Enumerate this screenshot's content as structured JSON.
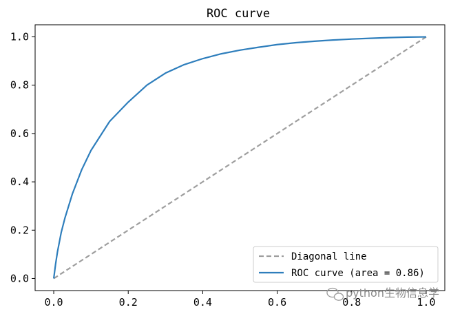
{
  "chart_data": {
    "type": "line",
    "title": "ROC curve",
    "xlabel": "",
    "ylabel": "",
    "xlim": [
      -0.05,
      1.05
    ],
    "ylim": [
      -0.05,
      1.05
    ],
    "xticks": [
      0.0,
      0.2,
      0.4,
      0.6,
      0.8,
      1.0
    ],
    "xtick_labels": [
      "0.0",
      "0.2",
      "0.4",
      "0.6",
      "0.8",
      "1.0"
    ],
    "yticks": [
      0.0,
      0.2,
      0.4,
      0.6,
      0.8,
      1.0
    ],
    "ytick_labels": [
      "0.0",
      "0.2",
      "0.4",
      "0.6",
      "0.8",
      "1.0"
    ],
    "grid": false,
    "legend": {
      "position": "lower-right"
    },
    "series": [
      {
        "name": "Diagonal line",
        "style": "dashed",
        "color": "#9e9e9e",
        "x": [
          0,
          1
        ],
        "y": [
          0,
          1
        ]
      },
      {
        "name": "ROC curve (area = 0.86)",
        "style": "solid",
        "color": "#2e7ebc",
        "x": [
          0,
          0.005,
          0.01,
          0.02,
          0.03,
          0.05,
          0.075,
          0.1,
          0.15,
          0.2,
          0.25,
          0.3,
          0.35,
          0.4,
          0.45,
          0.5,
          0.55,
          0.6,
          0.65,
          0.7,
          0.75,
          0.8,
          0.85,
          0.9,
          0.95,
          1.0
        ],
        "y": [
          0,
          0.06,
          0.11,
          0.19,
          0.25,
          0.35,
          0.45,
          0.53,
          0.65,
          0.73,
          0.8,
          0.85,
          0.885,
          0.91,
          0.93,
          0.945,
          0.957,
          0.968,
          0.976,
          0.982,
          0.987,
          0.991,
          0.994,
          0.997,
          0.999,
          1.0
        ]
      }
    ]
  },
  "watermark": {
    "text": "python生物信息学",
    "icon": "wechat-icon"
  }
}
